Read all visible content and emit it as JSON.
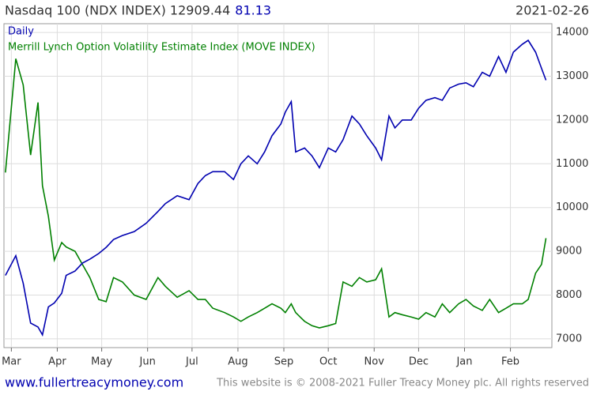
{
  "chart_data": {
    "type": "line",
    "title": "Nasdaq 100 (NDX INDEX) 12909.44",
    "title_change": "81.13",
    "date": "2021-02-26",
    "footer_left": "www.fullertreacymoney.com",
    "footer_right": "This website is © 2008-2021 Fuller Treacy Money plc. All rights reserved",
    "x": [
      -4,
      3,
      8,
      13,
      18,
      21,
      25,
      29,
      34,
      37,
      43,
      48,
      53,
      59,
      64,
      69,
      75,
      83,
      91,
      99,
      104,
      112,
      120,
      126,
      131,
      136,
      144,
      150,
      155,
      160,
      166,
      171,
      176,
      182,
      185,
      189,
      192,
      198,
      203,
      208,
      214,
      219,
      224,
      230,
      235,
      240,
      246,
      250,
      255,
      259,
      264,
      270,
      275,
      280,
      286,
      291,
      296,
      302,
      307,
      312,
      318,
      323,
      329,
      334,
      339,
      345,
      349,
      354,
      358,
      361
    ],
    "series": [
      {
        "name": "Daily",
        "color": "#0000b0",
        "values": [
          8450,
          8900,
          8270,
          7360,
          7270,
          7090,
          7730,
          7820,
          8040,
          8450,
          8550,
          8730,
          8820,
          8950,
          9090,
          9270,
          9360,
          9450,
          9640,
          9910,
          10090,
          10270,
          10180,
          10550,
          10730,
          10820,
          10820,
          10640,
          11000,
          11180,
          11000,
          11270,
          11640,
          11910,
          12180,
          12420,
          11270,
          11360,
          11180,
          10910,
          11360,
          11270,
          11550,
          12090,
          11910,
          11640,
          11360,
          11090,
          12090,
          11820,
          12000,
          12000,
          12270,
          12450,
          12510,
          12450,
          12730,
          12820,
          12850,
          12760,
          13090,
          13000,
          13450,
          13090,
          13550,
          13730,
          13820,
          13550,
          13180,
          12909.44
        ]
      },
      {
        "name": "Merrill Lynch Option Volatility Estimate Index (MOVE INDEX)",
        "color": "#008000",
        "values": [
          10800,
          13400,
          12800,
          11200,
          12400,
          10500,
          9800,
          8800,
          9200,
          9100,
          9000,
          8700,
          8400,
          7900,
          7850,
          8400,
          8300,
          8000,
          7900,
          8400,
          8200,
          7950,
          8100,
          7900,
          7900,
          7700,
          7600,
          7500,
          7400,
          7500,
          7600,
          7700,
          7800,
          7700,
          7600,
          7800,
          7600,
          7400,
          7300,
          7250,
          7300,
          7350,
          8300,
          8200,
          8400,
          8300,
          8350,
          8600,
          7500,
          7600,
          7550,
          7500,
          7450,
          7600,
          7500,
          7800,
          7600,
          7800,
          7900,
          7750,
          7650,
          7900,
          7600,
          7700,
          7800,
          7800,
          7900,
          8500,
          8700,
          9300
        ]
      }
    ],
    "xlim": [
      -5,
      365
    ],
    "xticks": [
      {
        "value": 0,
        "label": "Mar"
      },
      {
        "value": 31,
        "label": "Apr"
      },
      {
        "value": 61,
        "label": "May"
      },
      {
        "value": 92,
        "label": "Jun"
      },
      {
        "value": 122,
        "label": "Jul"
      },
      {
        "value": 153,
        "label": "Aug"
      },
      {
        "value": 184,
        "label": "Sep"
      },
      {
        "value": 214,
        "label": "Oct"
      },
      {
        "value": 245,
        "label": "Nov"
      },
      {
        "value": 275,
        "label": "Dec"
      },
      {
        "value": 306,
        "label": "Jan"
      },
      {
        "value": 337,
        "label": "Feb"
      }
    ],
    "ylim": [
      6800,
      14200
    ],
    "yticks": [
      7000,
      8000,
      9000,
      10000,
      11000,
      12000,
      13000,
      14000
    ],
    "grid": true
  }
}
